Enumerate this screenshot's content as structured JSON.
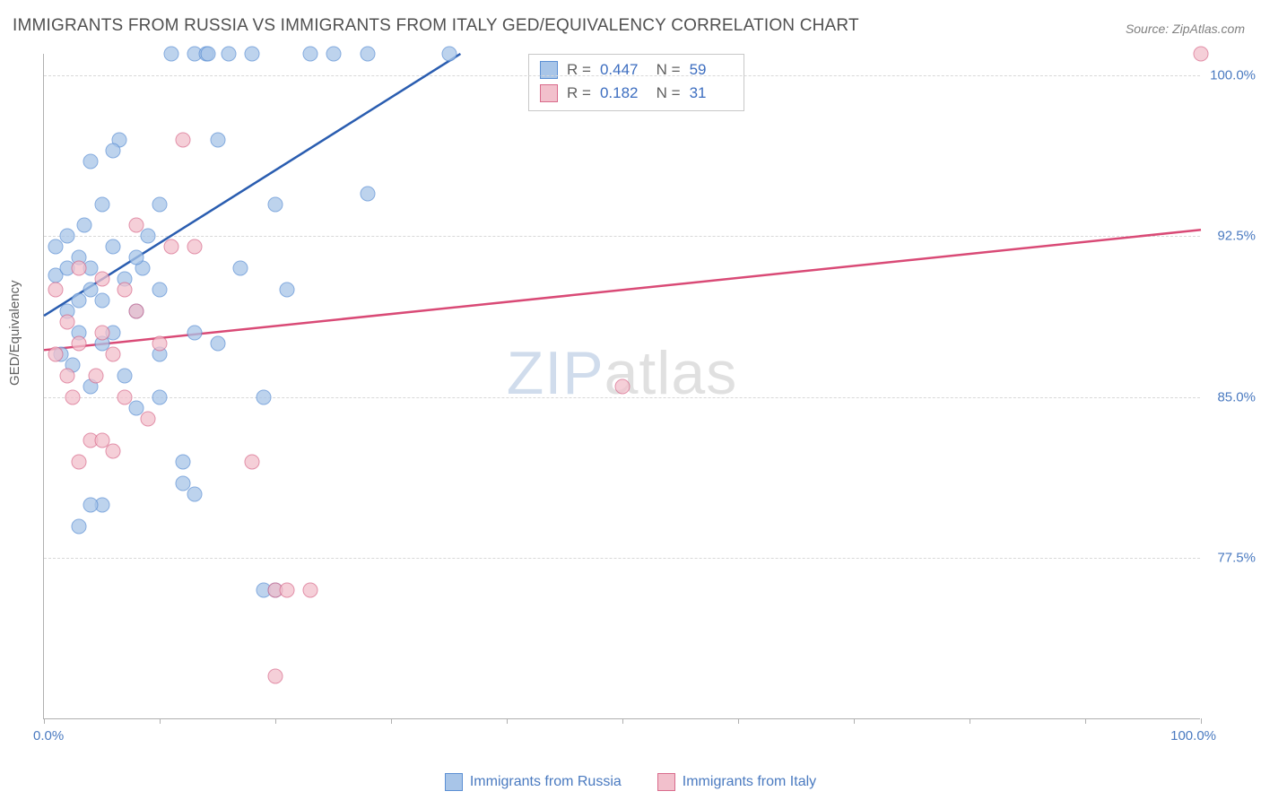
{
  "title": "IMMIGRANTS FROM RUSSIA VS IMMIGRANTS FROM ITALY GED/EQUIVALENCY CORRELATION CHART",
  "source": "Source: ZipAtlas.com",
  "ylabel": "GED/Equivalency",
  "watermark_bold": "ZIP",
  "watermark_thin": "atlas",
  "chart": {
    "type": "scatter",
    "xlim": [
      0,
      100
    ],
    "ylim": [
      70,
      101
    ],
    "x_origin_label": "0.0%",
    "x_max_label": "100.0%",
    "y_ticks": [
      77.5,
      85.0,
      92.5,
      100.0
    ],
    "y_tick_labels": [
      "77.5%",
      "85.0%",
      "92.5%",
      "100.0%"
    ],
    "x_tick_positions": [
      0,
      10,
      20,
      30,
      40,
      50,
      60,
      70,
      80,
      90,
      100
    ],
    "background_color": "#ffffff",
    "grid_color": "#d8d8d8",
    "axis_color": "#b0b0b0",
    "series": [
      {
        "name": "Immigrants from Russia",
        "fill": "#a8c5e8",
        "stroke": "#5b8fd4",
        "line_color": "#2a5db0",
        "line_width": 2.5,
        "R": "0.447",
        "N": "59",
        "trend": {
          "x1": 0,
          "y1": 88.8,
          "x2": 36,
          "y2": 101
        },
        "points": [
          [
            1,
            90.7
          ],
          [
            1,
            92
          ],
          [
            1.5,
            87
          ],
          [
            2,
            89
          ],
          [
            2,
            91
          ],
          [
            2,
            92.5
          ],
          [
            2.5,
            86.5
          ],
          [
            3,
            88
          ],
          [
            3,
            91.5
          ],
          [
            3.5,
            93
          ],
          [
            4,
            85.5
          ],
          [
            4,
            90
          ],
          [
            4,
            96
          ],
          [
            5,
            87.5
          ],
          [
            5,
            89.5
          ],
          [
            5,
            94
          ],
          [
            6,
            88
          ],
          [
            6,
            92
          ],
          [
            6.5,
            97
          ],
          [
            7,
            86
          ],
          [
            7,
            90.5
          ],
          [
            8,
            84.5
          ],
          [
            8,
            89
          ],
          [
            8.5,
            91
          ],
          [
            9,
            92.5
          ],
          [
            10,
            87
          ],
          [
            10,
            90
          ],
          [
            10,
            94
          ],
          [
            11,
            101
          ],
          [
            12,
            82
          ],
          [
            13,
            88
          ],
          [
            13,
            101
          ],
          [
            14,
            101
          ],
          [
            14.2,
            101
          ],
          [
            15,
            87.5
          ],
          [
            15,
            97
          ],
          [
            16,
            101
          ],
          [
            17,
            91
          ],
          [
            18,
            101
          ],
          [
            19,
            85
          ],
          [
            20,
            94
          ],
          [
            21,
            90
          ],
          [
            23,
            101
          ],
          [
            25,
            101
          ],
          [
            28,
            101
          ],
          [
            28,
            94.5
          ],
          [
            35,
            101
          ],
          [
            12,
            81
          ],
          [
            13,
            80.5
          ],
          [
            6,
            96.5
          ],
          [
            5,
            80
          ],
          [
            8,
            91.5
          ],
          [
            3,
            89.5
          ],
          [
            4,
            91
          ],
          [
            10,
            85
          ],
          [
            19,
            76
          ],
          [
            20,
            76
          ],
          [
            3,
            79
          ],
          [
            4,
            80
          ]
        ]
      },
      {
        "name": "Immigrants from Italy",
        "fill": "#f2c0cc",
        "stroke": "#d96b8c",
        "line_color": "#d94a76",
        "line_width": 2.5,
        "R": "0.182",
        "N": "31",
        "trend": {
          "x1": 0,
          "y1": 87.2,
          "x2": 100,
          "y2": 92.8
        },
        "points": [
          [
            1,
            87
          ],
          [
            1,
            90
          ],
          [
            2,
            86
          ],
          [
            2,
            88.5
          ],
          [
            2.5,
            85
          ],
          [
            3,
            87.5
          ],
          [
            3,
            91
          ],
          [
            4,
            83
          ],
          [
            4.5,
            86
          ],
          [
            5,
            88
          ],
          [
            5,
            90.5
          ],
          [
            6,
            82.5
          ],
          [
            6,
            87
          ],
          [
            7,
            85
          ],
          [
            8,
            89
          ],
          [
            8,
            93
          ],
          [
            9,
            84
          ],
          [
            10,
            87.5
          ],
          [
            11,
            92
          ],
          [
            12,
            97
          ],
          [
            13,
            92
          ],
          [
            18,
            82
          ],
          [
            20,
            76
          ],
          [
            21,
            76
          ],
          [
            23,
            76
          ],
          [
            20,
            72
          ],
          [
            50,
            85.5
          ],
          [
            100,
            101
          ],
          [
            3,
            82
          ],
          [
            5,
            83
          ],
          [
            7,
            90
          ]
        ]
      }
    ]
  },
  "legend": {
    "series1_label": "Immigrants from Russia",
    "series2_label": "Immigrants from Italy"
  }
}
